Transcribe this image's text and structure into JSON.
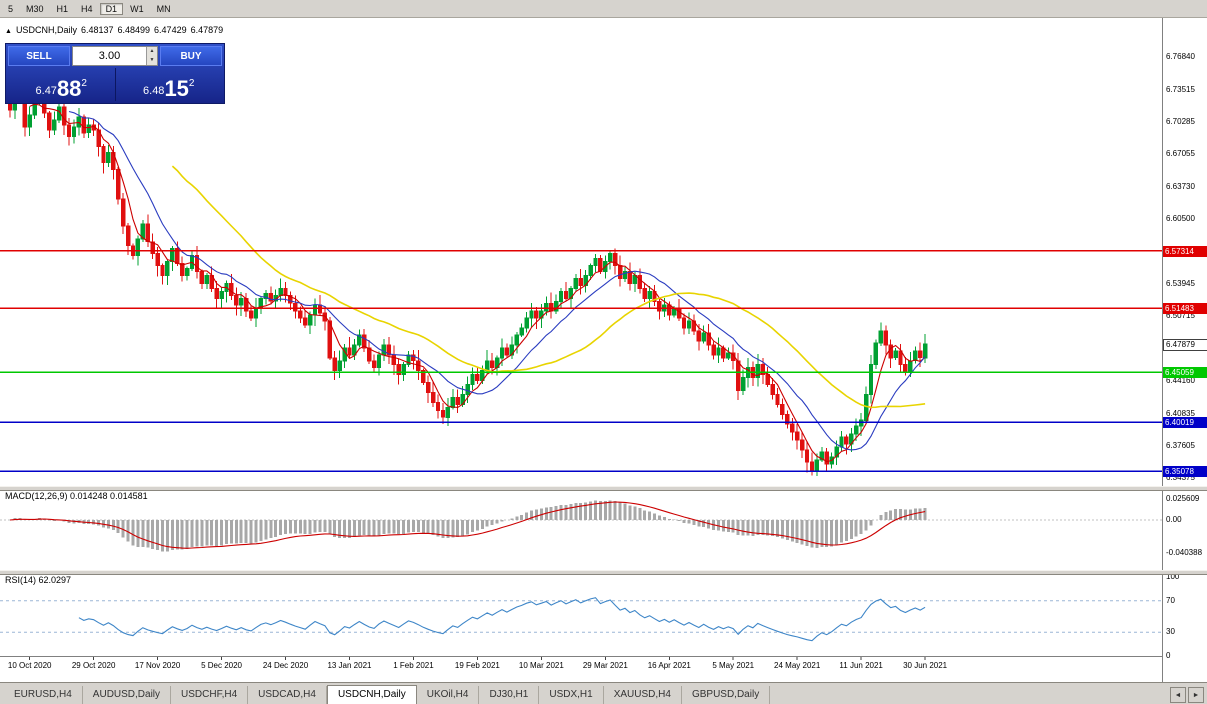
{
  "toolbar": {
    "timeframes": [
      "5",
      "M30",
      "H1",
      "H4",
      "D1",
      "W1",
      "MN"
    ],
    "active": "D1"
  },
  "icons": {
    "collapse": "▲",
    "volume_up": "▲",
    "volume_down": "▼",
    "tab_scroll_left": "◄",
    "tab_scroll_right": "►"
  },
  "info_bar": {
    "symbol": "USDCNH,Daily",
    "open": "6.48137",
    "high": "6.48499",
    "low": "6.47429",
    "close": "6.47879"
  },
  "trade_panel": {
    "sell_label": "SELL",
    "buy_label": "BUY",
    "volume": "3.00",
    "sell_price": {
      "prefix": "6.47",
      "big": "88",
      "sup": "2"
    },
    "buy_price": {
      "prefix": "6.48",
      "big": "15",
      "sup": "2"
    }
  },
  "chart_data": {
    "type": "candlestick",
    "symbol": "USDCNH",
    "period": "Daily",
    "closes": [
      6.715,
      6.742,
      6.728,
      6.698,
      6.71,
      6.726,
      6.738,
      6.712,
      6.695,
      6.705,
      6.718,
      6.7,
      6.688,
      6.698,
      6.708,
      6.692,
      6.7,
      6.695,
      6.678,
      6.662,
      6.672,
      6.655,
      6.625,
      6.598,
      6.578,
      6.568,
      6.585,
      6.6,
      6.582,
      6.57,
      6.558,
      6.548,
      6.562,
      6.575,
      6.56,
      6.548,
      6.555,
      6.568,
      6.552,
      6.54,
      6.548,
      6.535,
      6.525,
      6.532,
      6.54,
      6.528,
      6.518,
      6.525,
      6.512,
      6.505,
      6.515,
      6.525,
      6.53,
      6.522,
      6.528,
      6.535,
      6.528,
      6.52,
      6.512,
      6.505,
      6.498,
      6.508,
      6.518,
      6.51,
      6.502,
      6.465,
      6.452,
      6.462,
      6.475,
      6.468,
      6.478,
      6.488,
      6.475,
      6.462,
      6.455,
      6.468,
      6.478,
      6.468,
      6.458,
      6.448,
      6.458,
      6.468,
      6.462,
      6.452,
      6.44,
      6.43,
      6.42,
      6.412,
      6.405,
      6.415,
      6.425,
      6.418,
      6.428,
      6.438,
      6.448,
      6.442,
      6.452,
      6.462,
      6.455,
      6.465,
      6.475,
      6.468,
      6.478,
      6.488,
      6.495,
      6.505,
      6.512,
      6.505,
      6.512,
      6.52,
      6.512,
      6.522,
      6.532,
      6.525,
      6.535,
      6.545,
      6.538,
      6.548,
      6.558,
      6.565,
      6.552,
      6.562,
      6.57,
      6.558,
      6.545,
      6.552,
      6.54,
      6.548,
      6.535,
      6.525,
      6.532,
      6.522,
      6.512,
      6.518,
      6.508,
      6.515,
      6.505,
      6.495,
      6.502,
      6.492,
      6.482,
      6.49,
      6.478,
      6.468,
      6.475,
      6.465,
      6.47,
      6.462,
      6.432,
      6.445,
      6.455,
      6.445,
      6.458,
      6.448,
      6.438,
      6.428,
      6.418,
      6.408,
      6.398,
      6.39,
      6.382,
      6.372,
      6.36,
      6.352,
      6.362,
      6.37,
      6.358,
      6.365,
      6.375,
      6.385,
      6.378,
      6.388,
      6.396,
      6.402,
      6.428,
      6.458,
      6.48,
      6.492,
      6.478,
      6.465,
      6.472,
      6.458,
      6.45,
      6.462,
      6.472,
      6.465,
      6.479
    ],
    "date_labels": [
      "10 Oct 2020",
      "29 Oct 2020",
      "17 Nov 2020",
      "5 Dec 2020",
      "24 Dec 2020",
      "13 Jan 2021",
      "1 Feb 2021",
      "19 Feb 2021",
      "10 Mar 2021",
      "29 Mar 2021",
      "16 Apr 2021",
      "5 May 2021",
      "24 May 2021",
      "11 Jun 2021",
      "30 Jun 2021"
    ],
    "price_axis_labels": [
      "6.76840",
      "6.73515",
      "6.70285",
      "6.67055",
      "6.63730",
      "6.60500",
      "6.57270",
      "6.53945",
      "6.50715",
      "6.47390",
      "6.44160",
      "6.40835",
      "6.37605",
      "6.34375"
    ],
    "hlines": [
      {
        "value": 6.57314,
        "label": "6.57314",
        "color": "#e00000"
      },
      {
        "value": 6.51483,
        "label": "6.51483",
        "color": "#e00000"
      },
      {
        "value": 6.45059,
        "label": "6.45059",
        "color": "#00c800"
      },
      {
        "value": 6.40019,
        "label": "6.40019",
        "color": "#0000c8"
      },
      {
        "value": 6.35078,
        "label": "6.35078",
        "color": "#0000c8"
      }
    ],
    "current_price": {
      "value": 6.47879,
      "label": "6.47879"
    },
    "moving_averages": [
      {
        "period": 5,
        "color": "#cc0000"
      },
      {
        "period": 13,
        "color": "#2a3cc0"
      },
      {
        "period": 34,
        "color": "#e8d400"
      }
    ],
    "colors": {
      "up": "#00a032",
      "down": "#e01010",
      "background": "#ffffff"
    },
    "indicators": {
      "macd": {
        "label": "MACD(12,26,9) 0.014248 0.014581",
        "params": [
          12,
          26,
          9
        ],
        "values": [
          0.014248,
          0.014581
        ],
        "axis_labels": [
          "0.025609",
          "0.00",
          "-0.040388"
        ],
        "histogram_color": "#a8a8a8",
        "signal_color": "#cc0000"
      },
      "rsi": {
        "label": "RSI(14) 62.0297",
        "period": 14,
        "value": 62.0297,
        "levels": [
          100,
          70,
          30,
          0
        ],
        "line_color": "#3e86c8",
        "level_color": "#9cb6d6"
      }
    }
  },
  "tabs": {
    "items": [
      "EURUSD,H4",
      "AUDUSD,Daily",
      "USDCHF,H4",
      "USDCAD,H4",
      "USDCNH,Daily",
      "UKOil,H4",
      "DJ30,H1",
      "USDX,H1",
      "XAUUSD,H4",
      "GBPUSD,Daily"
    ],
    "active": "USDCNH,Daily"
  }
}
